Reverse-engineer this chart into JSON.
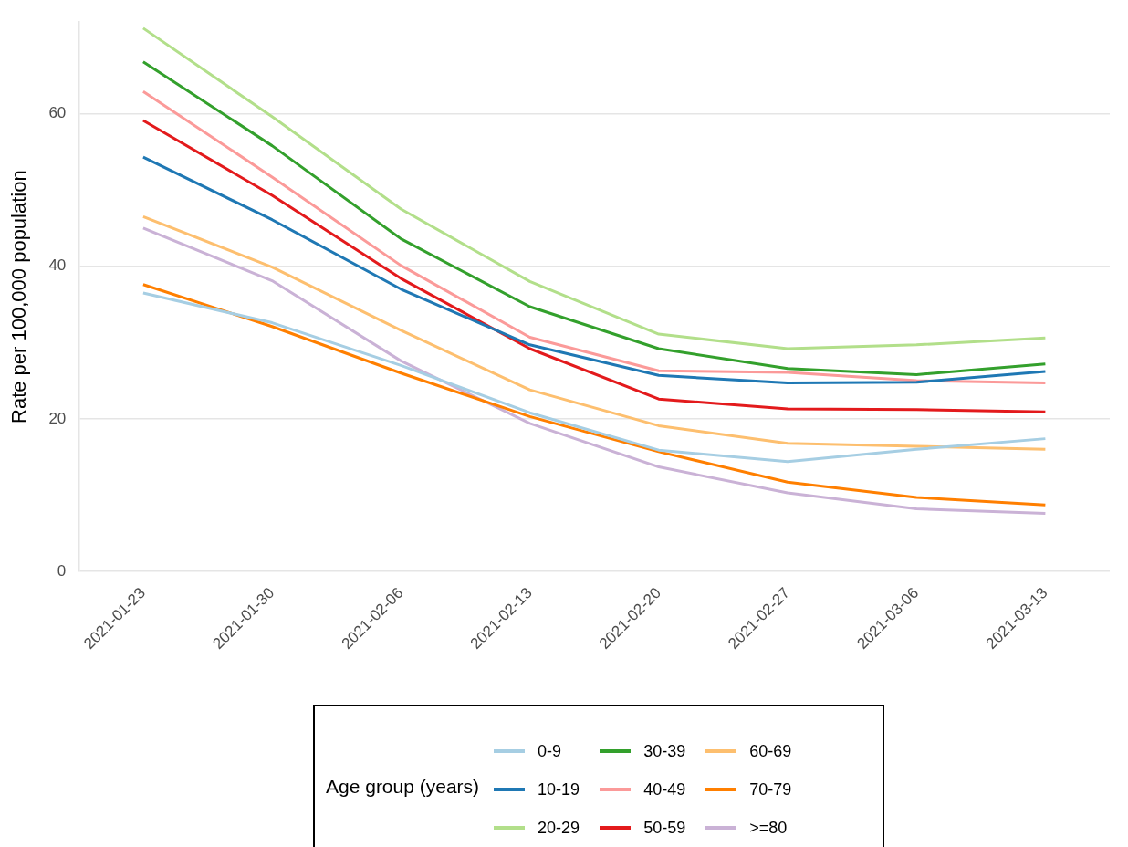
{
  "chart_data": {
    "type": "line",
    "ylabel": "Rate per 100,000 population",
    "legend_title": "Age group (years)",
    "legend": "bottom",
    "grid": "y",
    "marker": "none",
    "line_style": "solid",
    "categories": [
      "2021-01-23",
      "2021-01-30",
      "2021-02-06",
      "2021-02-13",
      "2021-02-20",
      "2021-02-27",
      "2021-03-06",
      "2021-03-13"
    ],
    "ylim": [
      0,
      72
    ],
    "yticks": [
      0,
      20,
      40,
      60
    ],
    "series": [
      {
        "name": "0-9",
        "color": "#a6cee3",
        "values": [
          36.5,
          32.6,
          27.0,
          20.8,
          15.9,
          14.4,
          16.0,
          17.4
        ]
      },
      {
        "name": "10-19",
        "color": "#1f78b4",
        "values": [
          54.3,
          46.1,
          37.0,
          29.7,
          25.7,
          24.7,
          24.8,
          26.2
        ]
      },
      {
        "name": "20-29",
        "color": "#b2df8a",
        "values": [
          71.2,
          59.6,
          47.5,
          38.0,
          31.1,
          29.2,
          29.7,
          30.6
        ]
      },
      {
        "name": "30-39",
        "color": "#33a02c",
        "values": [
          66.8,
          55.8,
          43.6,
          34.7,
          29.2,
          26.6,
          25.8,
          27.2
        ]
      },
      {
        "name": "40-49",
        "color": "#fb9a99",
        "values": [
          62.9,
          51.7,
          40.1,
          30.7,
          26.3,
          26.1,
          25.0,
          24.7
        ]
      },
      {
        "name": "50-59",
        "color": "#e31a1c",
        "values": [
          59.1,
          49.3,
          38.4,
          29.2,
          22.6,
          21.3,
          21.2,
          20.9
        ]
      },
      {
        "name": "60-69",
        "color": "#fdbf6f",
        "values": [
          46.5,
          39.9,
          31.6,
          23.8,
          19.1,
          16.8,
          16.4,
          16.0
        ]
      },
      {
        "name": "70-79",
        "color": "#ff7f00",
        "values": [
          37.6,
          32.1,
          26.0,
          20.3,
          15.7,
          11.7,
          9.7,
          8.7
        ]
      },
      {
        "name": ">=80",
        "color": "#cab2d6",
        "values": [
          45.0,
          38.1,
          27.6,
          19.4,
          13.7,
          10.3,
          8.2,
          7.6
        ]
      }
    ]
  }
}
